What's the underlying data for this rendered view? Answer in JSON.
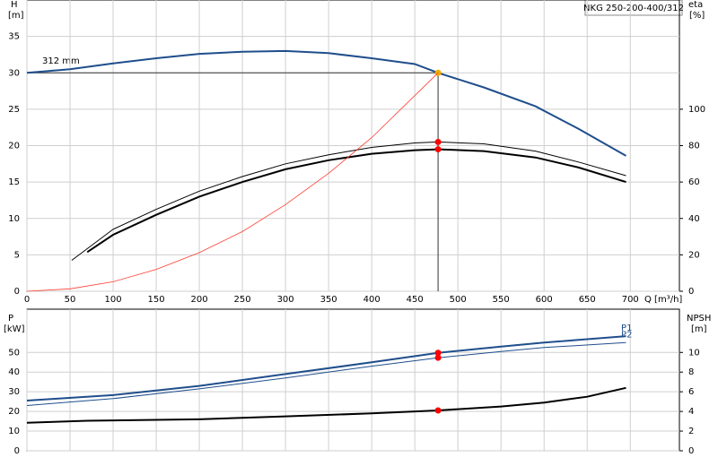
{
  "chart_data": [
    {
      "type": "line",
      "legend_box": "NKG 250-200-400/312",
      "annotation": "312 mm",
      "ylabel": "H",
      "yunit": "[m]",
      "y2label": "eta",
      "y2unit": "[%]",
      "xlabel": "Q [m³/h]",
      "xlim": [
        0,
        757
      ],
      "xticks": [
        0,
        50,
        100,
        150,
        200,
        250,
        300,
        350,
        400,
        450,
        500,
        550,
        600,
        650,
        700
      ],
      "xtick_labels": true,
      "ylim": [
        0,
        40
      ],
      "yticks": [
        0,
        5,
        10,
        15,
        20,
        25,
        30,
        35
      ],
      "y2lim": [
        0,
        160
      ],
      "y2ticks": [
        0,
        20,
        40,
        60,
        80,
        100
      ],
      "grid": true,
      "operating_point": 477,
      "series": [
        {
          "color": "#1f4e8c",
          "linewidth": 2,
          "marker_color": "#f2a900",
          "x": [
            0,
            50,
            100,
            150,
            200,
            250,
            300,
            350,
            400,
            450,
            477,
            530,
            590,
            640,
            695
          ],
          "values": [
            30,
            30.5,
            31.3,
            32,
            32.6,
            32.9,
            33,
            32.7,
            32,
            31.2,
            30,
            28,
            25.4,
            22.3,
            18.6
          ]
        },
        {
          "color": "#000000",
          "linewidth": 1,
          "axis": "y2",
          "marker_color": "#ff0000",
          "x": [
            52,
            100,
            150,
            200,
            250,
            300,
            350,
            400,
            450,
            477,
            530,
            590,
            640,
            695
          ],
          "values": [
            17,
            34,
            45,
            55,
            63,
            70,
            75,
            79,
            81.5,
            82,
            81,
            77,
            71,
            63.5
          ]
        },
        {
          "color": "#000000",
          "linewidth": 2,
          "axis": "y2",
          "marker_color": "#ff0000",
          "x": [
            70,
            100,
            150,
            200,
            250,
            300,
            350,
            400,
            450,
            477,
            530,
            590,
            640,
            695
          ],
          "values": [
            21.5,
            31,
            42,
            52,
            60,
            67,
            72,
            75.5,
            77.5,
            78,
            77,
            73.5,
            68,
            60
          ]
        },
        {
          "color": "#ff3b30",
          "linewidth": 0.8,
          "x": [
            0,
            50,
            100,
            150,
            200,
            250,
            300,
            350,
            400,
            477
          ],
          "values": [
            0,
            0.33,
            1.3,
            3,
            5.3,
            8.2,
            11.9,
            16.2,
            21.1,
            30
          ]
        }
      ]
    },
    {
      "type": "line",
      "ylabel": "P",
      "yunit": "[kW]",
      "y2label": "NPSH",
      "y2unit": "[m]",
      "xlim": [
        0,
        757
      ],
      "xticks": [
        0,
        50,
        100,
        150,
        200,
        250,
        300,
        350,
        400,
        450,
        500,
        550,
        600,
        650,
        700
      ],
      "xtick_labels": false,
      "ylim": [
        0,
        72
      ],
      "yticks": [
        0,
        10,
        20,
        30,
        40,
        50
      ],
      "y2lim": [
        0,
        14.4
      ],
      "y2ticks": [
        0,
        2,
        4,
        6,
        8,
        10
      ],
      "grid": true,
      "operating_point": 477,
      "series": [
        {
          "name": "P1",
          "color": "#1f4e8c",
          "linewidth": 2,
          "marker_color": "#ff0000",
          "x": [
            0,
            100,
            200,
            300,
            400,
            477,
            550,
            600,
            695
          ],
          "values": [
            25.5,
            28.3,
            33,
            39,
            45,
            49.8,
            53,
            55,
            58.3
          ]
        },
        {
          "name": "P2",
          "color": "#1f4e8c",
          "linewidth": 1,
          "marker_color": "#ff0000",
          "x": [
            0,
            100,
            200,
            300,
            400,
            477,
            550,
            600,
            695
          ],
          "values": [
            23,
            26.5,
            31.5,
            37,
            43,
            47.3,
            50.5,
            52.5,
            55
          ]
        },
        {
          "color": "#000000",
          "linewidth": 2,
          "axis": "y2",
          "marker_color": "#ff0000",
          "x": [
            0,
            70,
            200,
            300,
            400,
            477,
            550,
            600,
            650,
            695
          ],
          "values": [
            2.85,
            3.05,
            3.2,
            3.5,
            3.8,
            4.1,
            4.5,
            4.9,
            5.5,
            6.4
          ]
        }
      ]
    }
  ]
}
